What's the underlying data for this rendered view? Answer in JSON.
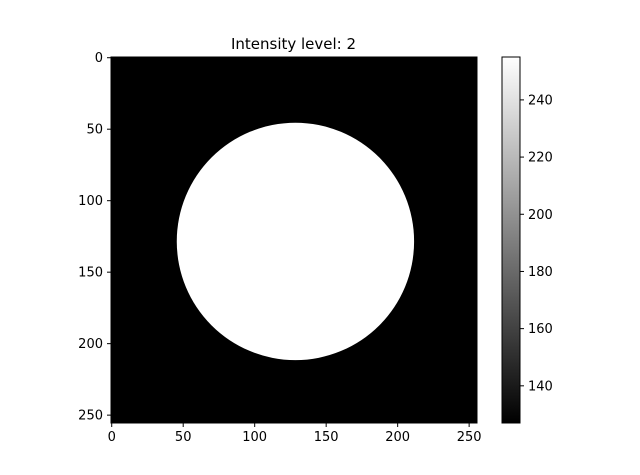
{
  "chart_data": {
    "type": "heatmap",
    "title": "Intensity level: 2",
    "xlabel": "",
    "ylabel": "",
    "image": {
      "size": [
        256,
        256
      ],
      "background_value": 127,
      "shapes": [
        {
          "shape": "disk",
          "center": [
            128.5,
            128.5
          ],
          "radius": 83,
          "value": 255
        }
      ]
    },
    "xlim": [
      -0.5,
      255.5
    ],
    "ylim": [
      255.5,
      -0.5
    ],
    "x_ticks": [
      0,
      50,
      100,
      150,
      200,
      250
    ],
    "y_ticks": [
      0,
      50,
      100,
      150,
      200,
      250
    ],
    "x_tick_labels": [
      "0",
      "50",
      "100",
      "150",
      "200",
      "250"
    ],
    "y_tick_labels": [
      "0",
      "50",
      "100",
      "150",
      "200",
      "250"
    ],
    "colorbar": {
      "cmap": "gray",
      "range": [
        127,
        255
      ],
      "ticks": [
        140,
        160,
        180,
        200,
        220,
        240
      ],
      "tick_labels": [
        "140",
        "160",
        "180",
        "200",
        "220",
        "240"
      ]
    },
    "grid": false
  }
}
